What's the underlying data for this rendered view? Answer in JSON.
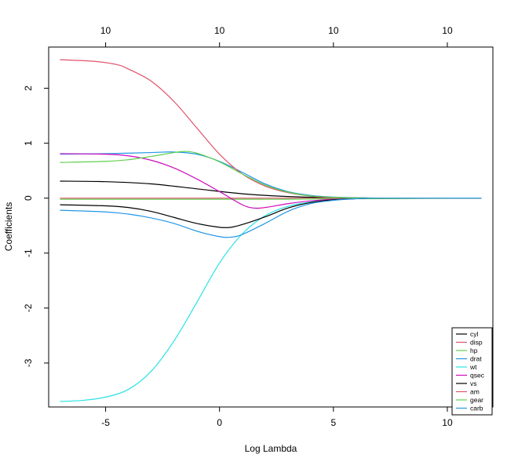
{
  "chart_data": {
    "type": "line",
    "title": "",
    "xlabel": "Log Lambda",
    "ylabel": "Coefficients",
    "xlim": [
      -7.5,
      12
    ],
    "ylim": [
      -3.8,
      2.75
    ],
    "x_ticks": [
      -5,
      0,
      5,
      10
    ],
    "x_tick_labels": [
      "-5",
      "0",
      "5",
      "10"
    ],
    "y_ticks": [
      -3,
      -2,
      -1,
      0,
      1,
      2
    ],
    "y_tick_labels": [
      "-3",
      "-2",
      "-1",
      "0",
      "1",
      "2"
    ],
    "top_axis_ticks": [
      -5,
      0,
      5,
      10
    ],
    "top_axis_labels": [
      "10",
      "10",
      "10",
      "10"
    ],
    "legend_position": "bottom-right",
    "series": [
      {
        "name": "cyl",
        "color": "#000000",
        "x": [
          -7,
          -5,
          -3,
          -1,
          1,
          3,
          5,
          7,
          9,
          11.5
        ],
        "values": [
          0.31,
          0.3,
          0.26,
          0.17,
          0.08,
          0.03,
          0.01,
          0.0,
          0.0,
          0.0
        ]
      },
      {
        "name": "disp",
        "color": "#DF536B",
        "x": [
          -7,
          -5.5,
          -4,
          -3,
          -2,
          -1,
          0,
          1,
          2,
          3,
          4,
          5,
          6,
          7,
          9,
          11.5
        ],
        "values": [
          0.0,
          0.0,
          0.0,
          0.0,
          0.0,
          0.0,
          0.0,
          0.0,
          0.0,
          0.0,
          0.0,
          0.0,
          0.0,
          0.0,
          0.0,
          0.0
        ]
      },
      {
        "name": "hp",
        "color": "#61D04F",
        "x": [
          -7,
          -5,
          -3,
          -1,
          1,
          3,
          5,
          7,
          9,
          11.5
        ],
        "values": [
          -0.02,
          -0.02,
          -0.02,
          -0.02,
          -0.02,
          -0.02,
          -0.01,
          -0.01,
          -0.005,
          0.0
        ]
      },
      {
        "name": "drat",
        "color": "#2297E6",
        "x": [
          -7,
          -5,
          -3,
          -2,
          -1,
          0,
          1,
          2,
          3,
          4,
          5,
          6,
          7,
          9,
          11.5
        ],
        "values": [
          0.8,
          0.81,
          0.83,
          0.84,
          0.8,
          0.67,
          0.47,
          0.26,
          0.12,
          0.05,
          0.02,
          0.01,
          0.0,
          0.0,
          0.0
        ]
      },
      {
        "name": "wt",
        "color": "#28E2E5",
        "x": [
          -7,
          -6,
          -5,
          -4,
          -3,
          -2,
          -1,
          0,
          1,
          2,
          3,
          4,
          5,
          6,
          7,
          9,
          11.5
        ],
        "values": [
          -3.7,
          -3.68,
          -3.62,
          -3.48,
          -3.15,
          -2.6,
          -1.9,
          -1.18,
          -0.65,
          -0.32,
          -0.15,
          -0.07,
          -0.03,
          -0.01,
          0.0,
          0.0,
          0.0
        ]
      },
      {
        "name": "qsec",
        "color": "#CD0BBC",
        "x": [
          -7,
          -5,
          -4,
          -3,
          -2,
          -1,
          0,
          1,
          1.5,
          2,
          3,
          4,
          5,
          6,
          7,
          9,
          11.5
        ],
        "values": [
          0.81,
          0.8,
          0.77,
          0.69,
          0.55,
          0.35,
          0.12,
          -0.12,
          -0.18,
          -0.17,
          -0.1,
          -0.05,
          -0.02,
          -0.01,
          0.0,
          0.0,
          0.0
        ]
      },
      {
        "name": "vs",
        "color": "#000000",
        "x": [
          -7,
          -5,
          -4,
          -3,
          -2,
          -1,
          0,
          0.5,
          1,
          2,
          3,
          4,
          5,
          6,
          7,
          9,
          11.5
        ],
        "values": [
          -0.12,
          -0.14,
          -0.17,
          -0.24,
          -0.35,
          -0.46,
          -0.53,
          -0.53,
          -0.48,
          -0.34,
          -0.18,
          -0.08,
          -0.03,
          -0.01,
          0.0,
          0.0,
          0.0
        ]
      },
      {
        "name": "am",
        "color": "#DF536B",
        "x": [
          -7,
          -5.5,
          -4.5,
          -4,
          -3,
          -2,
          -1,
          0,
          1,
          2,
          3,
          4,
          5,
          6,
          7,
          9,
          11.5
        ],
        "values": [
          2.52,
          2.49,
          2.43,
          2.35,
          2.13,
          1.76,
          1.28,
          0.8,
          0.44,
          0.22,
          0.1,
          0.04,
          0.015,
          0.005,
          0.0,
          0.0,
          0.0
        ]
      },
      {
        "name": "gear",
        "color": "#61D04F",
        "x": [
          -7,
          -5,
          -4,
          -3,
          -2,
          -1.5,
          -1,
          0,
          1,
          2,
          3,
          4,
          5,
          6,
          7,
          9,
          11.5
        ],
        "values": [
          0.65,
          0.67,
          0.7,
          0.76,
          0.83,
          0.85,
          0.82,
          0.66,
          0.44,
          0.24,
          0.11,
          0.04,
          0.015,
          0.005,
          0.0,
          0.0,
          0.0
        ]
      },
      {
        "name": "carb",
        "color": "#2297E6",
        "x": [
          -7,
          -5,
          -4,
          -3,
          -2,
          -1,
          0,
          0.5,
          1,
          2,
          3,
          4,
          5,
          6,
          7,
          9,
          11.5
        ],
        "values": [
          -0.22,
          -0.25,
          -0.29,
          -0.36,
          -0.46,
          -0.6,
          -0.7,
          -0.71,
          -0.66,
          -0.46,
          -0.24,
          -0.1,
          -0.04,
          -0.01,
          0.0,
          0.0,
          0.0
        ]
      }
    ]
  }
}
